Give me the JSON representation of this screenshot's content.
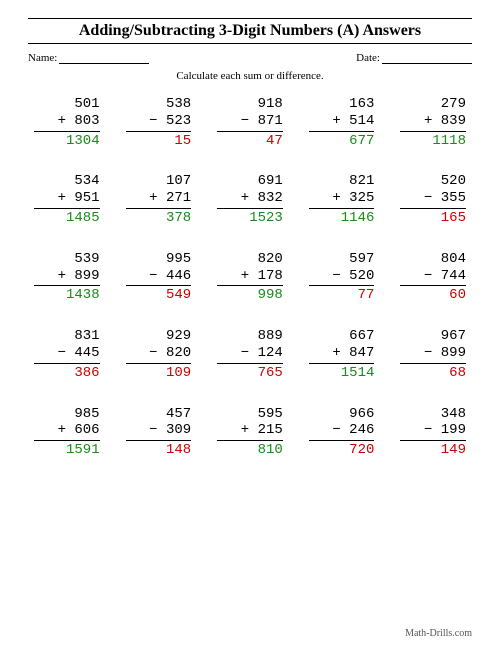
{
  "title": "Adding/Subtracting 3-Digit Numbers (A) Answers",
  "name_label": "Name:",
  "date_label": "Date:",
  "instruction": "Calculate each sum or difference.",
  "footer": "Math-Drills.com",
  "colors": {
    "add": "#1a8a1a",
    "sub": "#cc0000",
    "text": "#000000",
    "bg": "#ffffff"
  },
  "problems": [
    {
      "a": 501,
      "op": "+",
      "b": 803,
      "ans": 1304
    },
    {
      "a": 538,
      "op": "−",
      "b": 523,
      "ans": 15
    },
    {
      "a": 918,
      "op": "−",
      "b": 871,
      "ans": 47
    },
    {
      "a": 163,
      "op": "+",
      "b": 514,
      "ans": 677
    },
    {
      "a": 279,
      "op": "+",
      "b": 839,
      "ans": 1118
    },
    {
      "a": 534,
      "op": "+",
      "b": 951,
      "ans": 1485
    },
    {
      "a": 107,
      "op": "+",
      "b": 271,
      "ans": 378
    },
    {
      "a": 691,
      "op": "+",
      "b": 832,
      "ans": 1523
    },
    {
      "a": 821,
      "op": "+",
      "b": 325,
      "ans": 1146
    },
    {
      "a": 520,
      "op": "−",
      "b": 355,
      "ans": 165
    },
    {
      "a": 539,
      "op": "+",
      "b": 899,
      "ans": 1438
    },
    {
      "a": 995,
      "op": "−",
      "b": 446,
      "ans": 549
    },
    {
      "a": 820,
      "op": "+",
      "b": 178,
      "ans": 998
    },
    {
      "a": 597,
      "op": "−",
      "b": 520,
      "ans": 77
    },
    {
      "a": 804,
      "op": "−",
      "b": 744,
      "ans": 60
    },
    {
      "a": 831,
      "op": "−",
      "b": 445,
      "ans": 386
    },
    {
      "a": 929,
      "op": "−",
      "b": 820,
      "ans": 109
    },
    {
      "a": 889,
      "op": "−",
      "b": 124,
      "ans": 765
    },
    {
      "a": 667,
      "op": "+",
      "b": 847,
      "ans": 1514
    },
    {
      "a": 967,
      "op": "−",
      "b": 899,
      "ans": 68
    },
    {
      "a": 985,
      "op": "+",
      "b": 606,
      "ans": 1591
    },
    {
      "a": 457,
      "op": "−",
      "b": 309,
      "ans": 148
    },
    {
      "a": 595,
      "op": "+",
      "b": 215,
      "ans": 810
    },
    {
      "a": 966,
      "op": "−",
      "b": 246,
      "ans": 720
    },
    {
      "a": 348,
      "op": "−",
      "b": 199,
      "ans": 149
    }
  ]
}
